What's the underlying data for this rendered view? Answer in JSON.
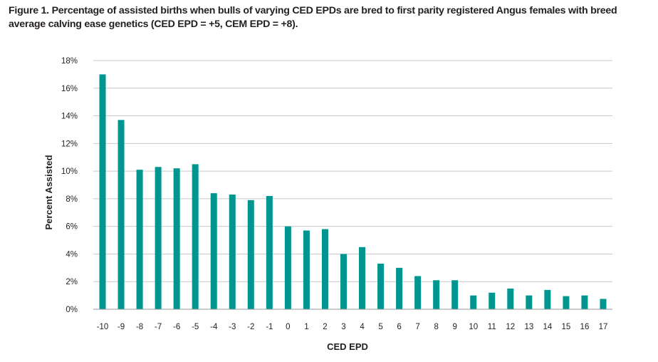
{
  "chart_data": {
    "type": "bar",
    "title": "Figure 1. Percentage of assisted births when bulls of varying CED EPDs are bred to first parity registered Angus females with breed average calving ease genetics (CED EPD = +5, CEM EPD = +8).",
    "xlabel": "CED EPD",
    "ylabel": "Percent Assisted",
    "categories": [
      "-10",
      "-9",
      "-8",
      "-7",
      "-6",
      "-5",
      "-4",
      "-3",
      "-2",
      "-1",
      "0",
      "1",
      "2",
      "3",
      "4",
      "5",
      "6",
      "7",
      "8",
      "9",
      "10",
      "11",
      "12",
      "13",
      "14",
      "15",
      "16",
      "17"
    ],
    "values": [
      17.0,
      13.7,
      10.1,
      10.3,
      10.2,
      10.5,
      8.4,
      8.3,
      7.9,
      8.2,
      6.0,
      5.7,
      5.8,
      4.0,
      4.5,
      3.3,
      3.0,
      2.4,
      2.1,
      2.1,
      1.0,
      1.2,
      1.5,
      1.0,
      1.4,
      0.95,
      1.0,
      0.75
    ],
    "ylim": [
      0,
      18
    ],
    "yticks": [
      "0%",
      "2%",
      "4%",
      "6%",
      "8%",
      "10%",
      "12%",
      "14%",
      "16%",
      "18%"
    ],
    "grid": true,
    "legend": "none",
    "bar_color": "#00958f",
    "grid_color": "#c8c8c8"
  }
}
